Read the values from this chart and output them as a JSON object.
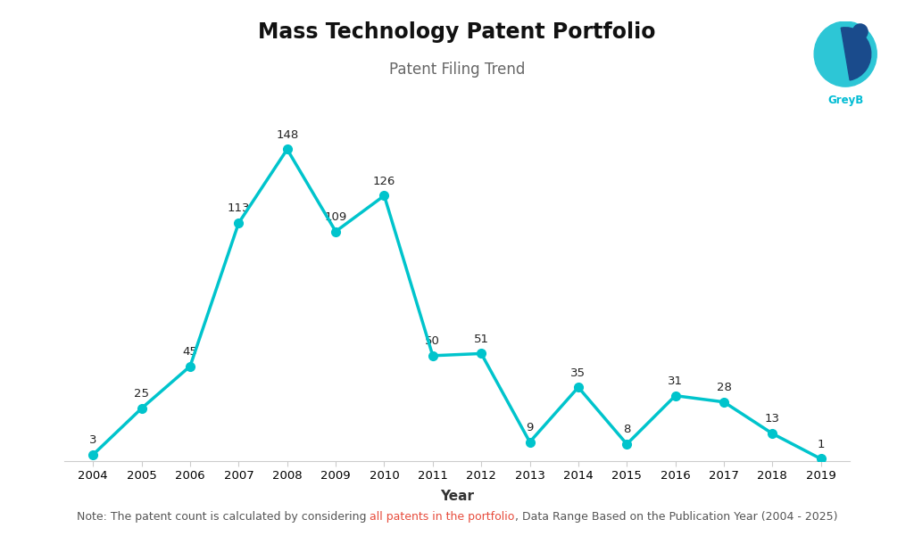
{
  "title": "Mass Technology Patent Portfolio",
  "subtitle": "Patent Filing Trend",
  "xlabel": "Year",
  "years": [
    2004,
    2005,
    2006,
    2007,
    2008,
    2009,
    2010,
    2011,
    2012,
    2013,
    2014,
    2015,
    2016,
    2017,
    2018,
    2019
  ],
  "values": [
    3,
    25,
    45,
    113,
    148,
    109,
    126,
    50,
    51,
    9,
    35,
    8,
    31,
    28,
    13,
    1
  ],
  "line_color": "#00C4CC",
  "marker_color": "#00C4CC",
  "bg_color": "#ffffff",
  "note_part1": "Note: The patent count is calculated by considering ",
  "note_part2": "all patents in the portfolio",
  "note_part3": ", Data Range Based on the Publication Year (2004 - 2025)",
  "note_color_normal": "#555555",
  "note_color_highlight": "#e74c3c",
  "title_fontsize": 17,
  "subtitle_fontsize": 12,
  "label_fontsize": 9.5,
  "note_fontsize": 9,
  "axis_tick_fontsize": 9.5,
  "axis_label_fontsize": 11,
  "ylim": [
    0,
    168
  ],
  "greyb_text_color": "#00BCD4",
  "logo_teal": "#2DC6D6",
  "logo_dark": "#1A4B8C"
}
